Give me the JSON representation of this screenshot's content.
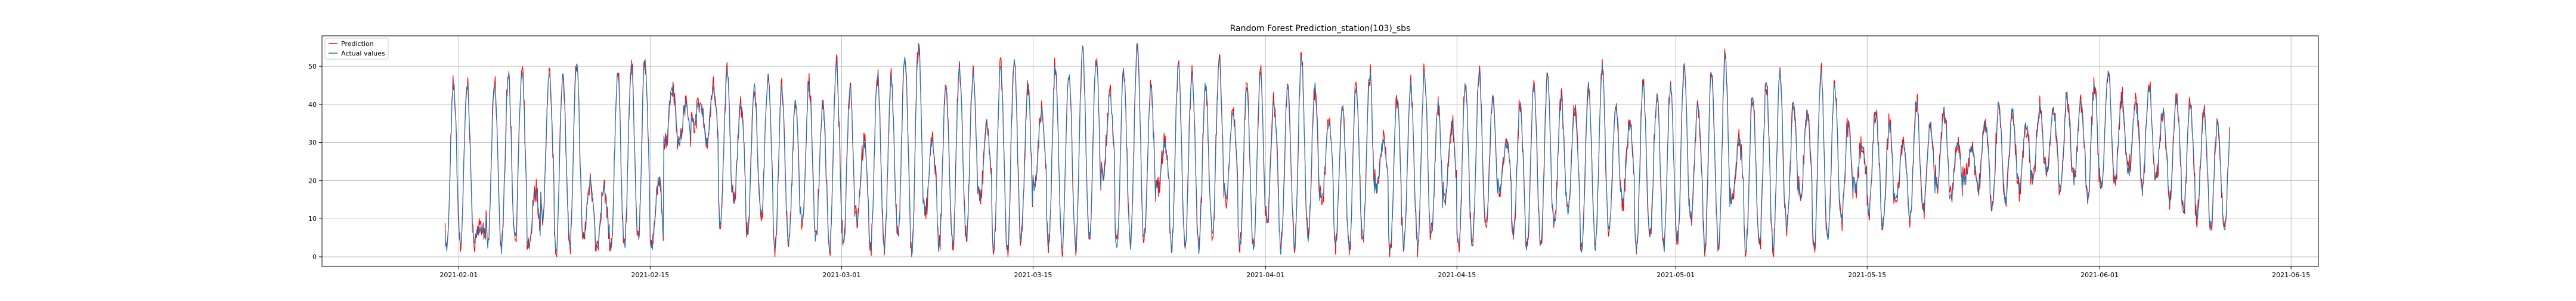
{
  "chart_data": {
    "type": "line",
    "title": "Random Forest Prediction_station(103)_sbs",
    "xlabel": "",
    "ylabel": "",
    "x_range": [
      "2021-01-22",
      "2021-06-17"
    ],
    "x_data_range": [
      "2021-01-31",
      "2021-06-10T12:00"
    ],
    "ylim": [
      -2.5,
      58
    ],
    "xticks": [
      "2021-02-01",
      "2021-02-15",
      "2021-03-01",
      "2021-03-15",
      "2021-04-01",
      "2021-04-15",
      "2021-05-01",
      "2021-05-15",
      "2021-06-01",
      "2021-06-15"
    ],
    "yticks": [
      0,
      10,
      20,
      30,
      40,
      50
    ],
    "grid": true,
    "legend_position": "top-left",
    "sampling": "hourly, approximated",
    "series": [
      {
        "name": "Prediction",
        "color": "#ff0000"
      },
      {
        "name": "Actual values",
        "color": "#1f77b4"
      }
    ],
    "daily_peaks_feb": [
      45,
      45,
      8,
      45,
      48,
      48,
      18,
      47,
      48,
      50,
      20,
      18,
      48,
      50,
      52,
      20,
      45,
      40,
      40,
      44,
      48,
      40,
      45,
      47,
      44,
      41,
      45,
      40
    ],
    "daily_peaks_mar": [
      50,
      45,
      30,
      48,
      47,
      52,
      55,
      30,
      45,
      50,
      48,
      35,
      50,
      52,
      45,
      38,
      50,
      48,
      55,
      52,
      42,
      48,
      55,
      45,
      30,
      50,
      48,
      45,
      52,
      38,
      45
    ],
    "daily_peaks_apr": [
      48,
      40,
      45,
      52,
      45,
      35,
      40,
      45,
      48,
      30,
      42,
      45,
      48,
      40,
      35,
      45,
      48,
      42,
      30,
      40,
      45,
      48,
      42,
      38,
      45,
      50,
      40,
      35,
      45,
      42
    ],
    "daily_peaks_may": [
      45,
      50,
      40,
      48,
      52,
      30,
      42,
      45,
      48,
      40,
      38,
      48,
      45,
      35,
      30,
      38,
      35,
      30,
      40,
      35,
      38,
      30,
      28,
      35,
      40,
      38,
      35,
      40,
      38,
      42,
      40
    ],
    "daily_peaks_jun": [
      45,
      48,
      42,
      40,
      45,
      38,
      42,
      40,
      38,
      35
    ],
    "daily_troughs_feb": [
      2,
      3,
      5,
      3,
      2,
      5,
      2,
      10,
      2,
      3,
      5,
      2,
      1,
      3,
      5,
      2,
      30,
      30,
      35,
      30,
      8,
      15,
      5,
      10,
      2,
      3,
      8,
      5
    ],
    "daily_troughs_mar": [
      2,
      3,
      10,
      2,
      2,
      5,
      1,
      12,
      2,
      3,
      5,
      15,
      2,
      2,
      5,
      18,
      2,
      3,
      2,
      5,
      20,
      2,
      3,
      5,
      18,
      2,
      3,
      2,
      5,
      15,
      2
    ],
    "daily_troughs_apr": [
      2,
      10,
      2,
      2,
      5,
      15,
      3,
      2,
      5,
      18,
      2,
      3,
      2,
      5,
      15,
      2,
      3,
      8,
      18,
      5,
      2,
      3,
      8,
      12,
      2,
      3,
      8,
      15,
      2,
      5
    ],
    "daily_troughs_may": [
      2,
      3,
      10,
      2,
      2,
      15,
      2,
      3,
      2,
      8,
      15,
      2,
      5,
      10,
      18,
      12,
      8,
      15,
      10,
      12,
      18,
      15,
      20,
      18,
      12,
      15,
      18,
      20,
      22,
      18,
      20
    ],
    "daily_troughs_jun": [
      15,
      18,
      20,
      22,
      18,
      20,
      15,
      12,
      10,
      8
    ]
  }
}
